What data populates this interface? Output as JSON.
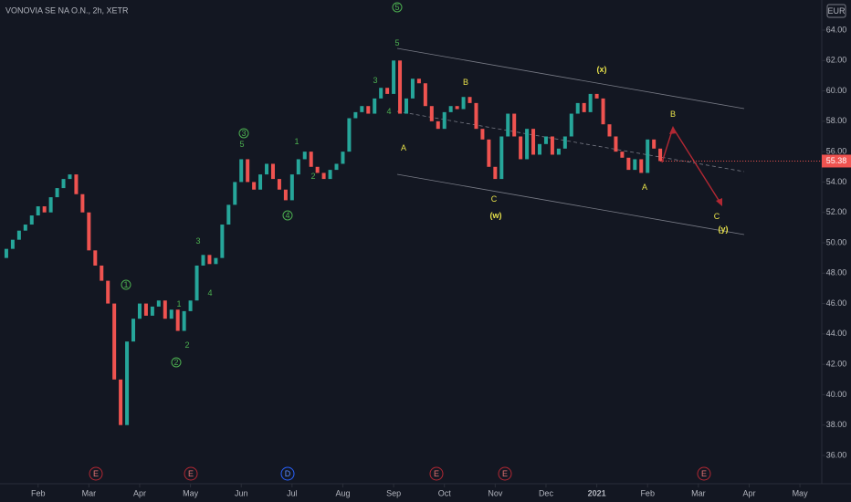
{
  "chart_data": {
    "type": "candlestick",
    "title": "VONOVIA SE NA O.N., 2h, XETR",
    "currency": "EUR",
    "x_start": 0.25,
    "x_step": 0.125,
    "close": [
      49.0,
      49.6,
      50.2,
      50.8,
      51.2,
      51.8,
      52.4,
      52.0,
      53.0,
      53.6,
      54.2,
      54.5,
      53.2,
      52.0,
      49.5,
      48.5,
      47.5,
      46.0,
      41.0,
      38.0,
      43.5,
      45.0,
      46.0,
      45.2,
      45.8,
      46.2,
      45.0,
      45.6,
      44.2,
      45.5,
      46.2,
      48.5,
      49.2,
      48.6,
      49.0,
      51.2,
      52.5,
      54.0,
      55.5,
      54.0,
      53.5,
      54.5,
      55.2,
      54.2,
      53.5,
      52.8,
      54.5,
      55.5,
      56.0,
      55.0,
      54.6,
      54.2,
      54.8,
      55.2,
      56.0,
      58.2,
      58.6,
      59.0,
      58.5,
      59.5,
      60.2,
      59.8,
      62.0,
      58.5,
      59.5,
      60.8,
      60.5,
      59.0,
      58.0,
      57.5,
      58.6,
      59.0,
      58.8,
      59.6,
      59.2,
      57.5,
      56.8,
      55.0,
      54.2,
      57.0,
      58.5,
      57.0,
      55.5,
      57.5,
      55.8,
      56.5,
      57.0,
      55.8,
      56.2,
      57.0,
      58.5,
      59.2,
      58.6,
      59.8,
      59.5,
      57.8,
      57.0,
      56.0,
      55.6,
      54.8,
      55.5,
      54.6,
      56.8,
      56.2,
      55.38
    ],
    "up_color": "#26a69a",
    "down_color": "#ef5350",
    "xlim": [
      0.25,
      16.43
    ],
    "xticks": [
      {
        "value": 1,
        "label": "Feb"
      },
      {
        "value": 2,
        "label": "Mar"
      },
      {
        "value": 3,
        "label": "Apr"
      },
      {
        "value": 4,
        "label": "May"
      },
      {
        "value": 5,
        "label": "Jun"
      },
      {
        "value": 6,
        "label": "Jul"
      },
      {
        "value": 7,
        "label": "Aug"
      },
      {
        "value": 8,
        "label": "Sep"
      },
      {
        "value": 9,
        "label": "Oct"
      },
      {
        "value": 10,
        "label": "Nov"
      },
      {
        "value": 11,
        "label": "Dec"
      },
      {
        "value": 12,
        "label": "2021"
      },
      {
        "value": 13,
        "label": "Feb"
      },
      {
        "value": 14,
        "label": "Mar"
      },
      {
        "value": 15,
        "label": "Apr"
      },
      {
        "value": 16,
        "label": "May"
      }
    ],
    "ylim": [
      35,
      65
    ],
    "yticks": [
      {
        "value": 36,
        "label": "36.00"
      },
      {
        "value": 38,
        "label": "38.00"
      },
      {
        "value": 40,
        "label": "40.00"
      },
      {
        "value": 42,
        "label": "42.00"
      },
      {
        "value": 44,
        "label": "44.00"
      },
      {
        "value": 46,
        "label": "46.00"
      },
      {
        "value": 48,
        "label": "48.00"
      },
      {
        "value": 50,
        "label": "50.00"
      },
      {
        "value": 52,
        "label": "52.00"
      },
      {
        "value": 54,
        "label": "54.00"
      },
      {
        "value": 56,
        "label": "56.00"
      },
      {
        "value": 58,
        "label": "58.00"
      },
      {
        "value": 60,
        "label": "60.00"
      },
      {
        "value": 62,
        "label": "62.00"
      },
      {
        "value": 64,
        "label": "64.00"
      }
    ],
    "grid": false,
    "annotations": [
      "1",
      "2",
      "3",
      "4",
      "5",
      "5",
      "1",
      "2",
      "3",
      "4",
      "1",
      "2",
      "3",
      "5",
      "4",
      "A",
      "B",
      "C",
      "(w)",
      "(x)",
      "A",
      "B",
      "C",
      "(y)"
    ],
    "events": [
      "E",
      "E",
      "D",
      "E",
      "E",
      "E"
    ]
  }
}
